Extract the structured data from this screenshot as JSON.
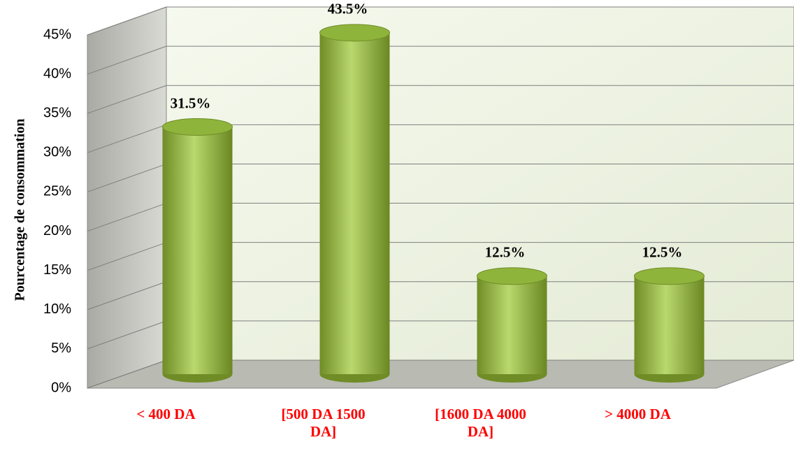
{
  "chart_data": {
    "type": "bar",
    "y_label": "Pourcentage de consommation",
    "categories": [
      "< 400 DA",
      "[500 DA 1500 DA]",
      "[1600 DA 4000 DA]",
      "> 4000 DA"
    ],
    "values": [
      31.5,
      43.5,
      12.5,
      12.5
    ],
    "value_labels": [
      "31.5%",
      "43.5%",
      "12.5%",
      "12.5%"
    ],
    "color": "#8fb43c",
    "ylim": [
      0,
      45
    ],
    "yticks": [
      {
        "value": 0,
        "label": "0%"
      },
      {
        "value": 5,
        "label": "5%"
      },
      {
        "value": 10,
        "label": "10%"
      },
      {
        "value": 15,
        "label": "15%"
      },
      {
        "value": 20,
        "label": "20%"
      },
      {
        "value": 25,
        "label": "25%"
      },
      {
        "value": 30,
        "label": "30%"
      },
      {
        "value": 35,
        "label": "35%"
      },
      {
        "value": 40,
        "label": "40%"
      },
      {
        "value": 45,
        "label": "45%"
      }
    ],
    "grid": true
  }
}
